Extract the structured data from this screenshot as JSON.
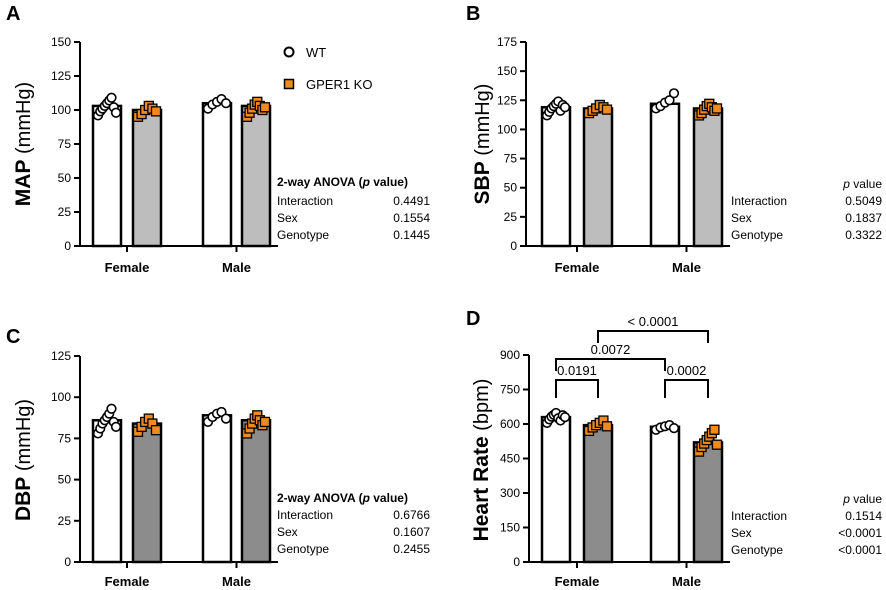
{
  "legend": {
    "wt_label": "WT",
    "ko_label": "GPER1 KO",
    "wt_color": "#ffffff",
    "ko_color": "#f08a1e"
  },
  "colors": {
    "wt_bar": "#ffffff",
    "ko_bar_light": "#bdbdbd",
    "ko_bar_dark": "#8c8c8c",
    "axis": "#000000"
  },
  "chart_data": [
    {
      "id": "A",
      "type": "bar",
      "letter": "A",
      "ylabel_bold": "MAP",
      "ylabel_unit": " (mmHg)",
      "ylim": [
        0,
        150
      ],
      "yticks": [
        0,
        25,
        50,
        75,
        100,
        125,
        150
      ],
      "categories": [
        "Female",
        "Male"
      ],
      "series": [
        {
          "name": "WT",
          "values": [
            103,
            105
          ],
          "points": [
            [
              96,
              99,
              101,
              103,
              105,
              107,
              109,
              102,
              98
            ],
            [
              101,
              104,
              106,
              108,
              105
            ]
          ]
        },
        {
          "name": "GPER1 KO",
          "values": [
            100,
            103
          ],
          "points": [
            [
              95,
              97,
              100,
              103,
              101,
              99
            ],
            [
              95,
              98,
              101,
              104,
              106,
              103,
              100,
              102
            ]
          ]
        }
      ],
      "stats": {
        "heading_pre": "2-way ANOVA (",
        "heading_p": "p",
        "heading_post": " value)",
        "rows": [
          {
            "label": "Interaction",
            "value": "0.4491"
          },
          {
            "label": "Sex",
            "value": "0.1554"
          },
          {
            "label": "Genotype",
            "value": "0.1445"
          }
        ]
      }
    },
    {
      "id": "B",
      "type": "bar",
      "letter": "B",
      "ylabel_bold": "SBP",
      "ylabel_unit": " (mmHg)",
      "ylim": [
        0,
        175
      ],
      "yticks": [
        0,
        25,
        50,
        75,
        100,
        125,
        150,
        175
      ],
      "categories": [
        "Female",
        "Male"
      ],
      "series": [
        {
          "name": "WT",
          "values": [
            119,
            122
          ],
          "points": [
            [
              112,
              115,
              118,
              120,
              122,
              124,
              116,
              121,
              119
            ],
            [
              118,
              120,
              123,
              125,
              131
            ]
          ]
        },
        {
          "name": "GPER1 KO",
          "values": [
            118,
            118
          ],
          "points": [
            [
              114,
              116,
              118,
              121,
              119,
              117
            ],
            [
              112,
              114,
              117,
              120,
              122,
              119,
              116,
              118
            ]
          ]
        }
      ],
      "stats": {
        "heading_pre": "",
        "heading_p": "p",
        "heading_post": " value",
        "rows": [
          {
            "label": "Interaction",
            "value": "0.5049"
          },
          {
            "label": "Sex",
            "value": "0.1837"
          },
          {
            "label": "Genotype",
            "value": "0.3322"
          }
        ]
      }
    },
    {
      "id": "C",
      "type": "bar",
      "letter": "C",
      "ylabel_bold": "DBP",
      "ylabel_unit": " (mmHg)",
      "ylim": [
        0,
        125
      ],
      "yticks": [
        0,
        25,
        50,
        75,
        100,
        125
      ],
      "categories": [
        "Female",
        "Male"
      ],
      "series": [
        {
          "name": "WT",
          "values": [
            86,
            89
          ],
          "points": [
            [
              78,
              81,
              84,
              86,
              88,
              90,
              93,
              85,
              82
            ],
            [
              85,
              88,
              90,
              91,
              87
            ]
          ]
        },
        {
          "name": "GPER1 KO",
          "values": [
            84,
            86
          ],
          "points": [
            [
              79,
              82,
              85,
              87,
              84,
              80
            ],
            [
              78,
              81,
              84,
              87,
              89,
              86,
              83,
              85
            ]
          ]
        }
      ],
      "stats": {
        "heading_pre": "2-way ANOVA (",
        "heading_p": "p",
        "heading_post": " value)",
        "rows": [
          {
            "label": "Interaction",
            "value": "0.6766"
          },
          {
            "label": "Sex",
            "value": "0.1607"
          },
          {
            "label": "Genotype",
            "value": "0.2455"
          }
        ]
      }
    },
    {
      "id": "D",
      "type": "bar",
      "letter": "D",
      "ylabel_bold": "Heart Rate",
      "ylabel_unit": " (bpm)",
      "ylim": [
        0,
        900
      ],
      "yticks": [
        0,
        150,
        300,
        450,
        600,
        750,
        900
      ],
      "categories": [
        "Female",
        "Male"
      ],
      "series": [
        {
          "name": "WT",
          "values": [
            630,
            588
          ],
          "points": [
            [
              605,
              620,
              632,
              640,
              648,
              625,
              615,
              638,
              630
            ],
            [
              575,
              585,
              590,
              595,
              582
            ]
          ]
        },
        {
          "name": "GPER1 KO",
          "values": [
            595,
            520
          ],
          "points": [
            [
              570,
              585,
              595,
              605,
              615,
              590
            ],
            [
              480,
              500,
              515,
              530,
              545,
              560,
              575,
              510
            ]
          ]
        }
      ],
      "comparisons": [
        {
          "label": "0.0191",
          "from": [
            0,
            0
          ],
          "to": [
            0,
            1
          ],
          "level": 1
        },
        {
          "label": "0.0002",
          "from": [
            1,
            0
          ],
          "to": [
            1,
            1
          ],
          "level": 1
        },
        {
          "label": "0.0072",
          "from": [
            0,
            0
          ],
          "to": [
            1,
            0
          ],
          "level": 2
        },
        {
          "label": "< 0.0001",
          "from": [
            0,
            1
          ],
          "to": [
            1,
            1
          ],
          "level": 3
        }
      ],
      "stats": {
        "heading_pre": "",
        "heading_p": "p",
        "heading_post": " value",
        "rows": [
          {
            "label": "Interaction",
            "value": "0.1514"
          },
          {
            "label": "Sex",
            "value": "<0.0001"
          },
          {
            "label": "Genotype",
            "value": "<0.0001"
          }
        ]
      }
    }
  ]
}
